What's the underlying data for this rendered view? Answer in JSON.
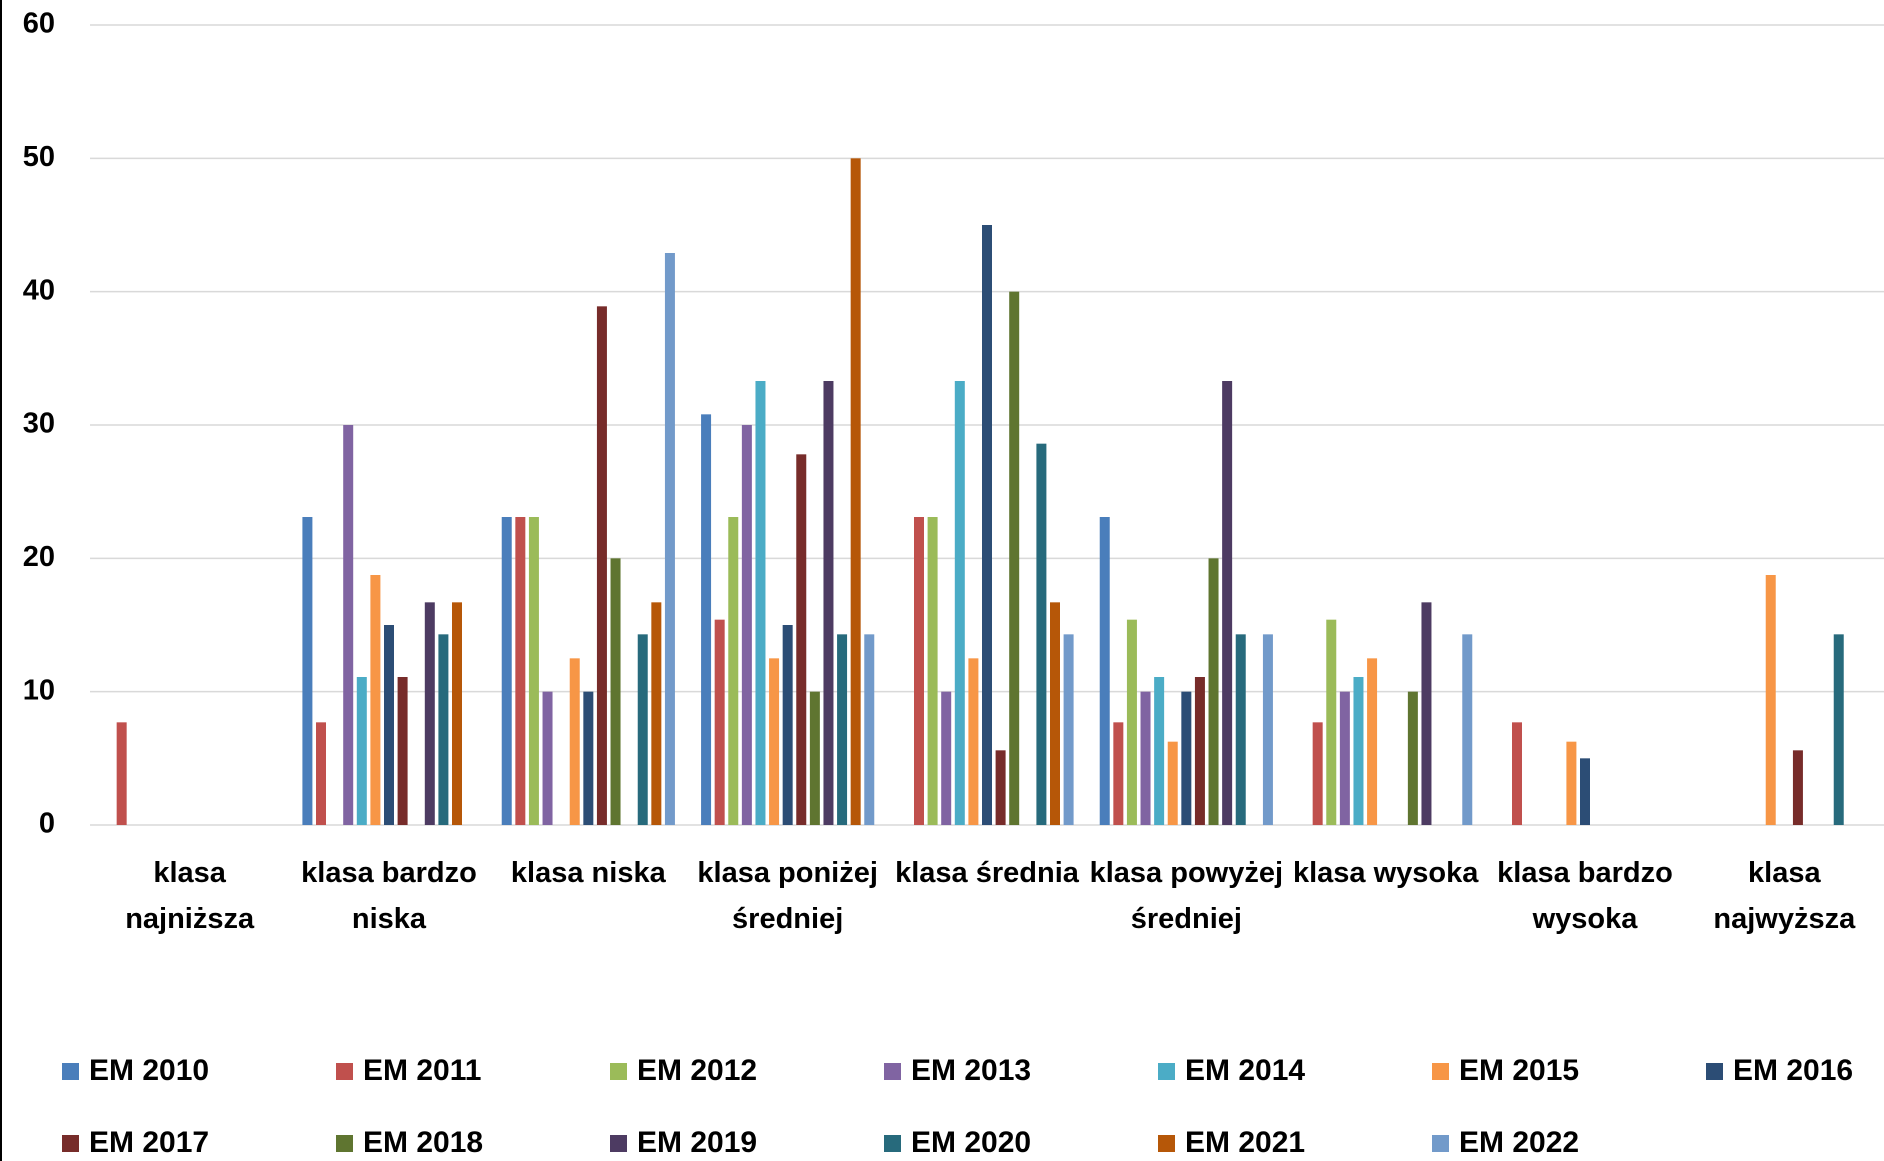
{
  "chart_data": {
    "type": "bar",
    "categories": [
      "klasa najniższa",
      "klasa bardzo niska",
      "klasa niska",
      "klasa poniżej średniej",
      "klasa średnia",
      "klasa powyżej średniej",
      "klasa wysoka",
      "klasa bardzo wysoka",
      "klasa najwyższa"
    ],
    "series": [
      {
        "name": "EM 2010",
        "color": "#4a7ebb",
        "values": [
          null,
          23.1,
          23.1,
          30.8,
          null,
          23.1,
          null,
          null,
          null
        ]
      },
      {
        "name": "EM 2011",
        "color": "#c0504d",
        "values": [
          7.7,
          7.7,
          23.1,
          15.4,
          23.1,
          7.7,
          7.7,
          7.7,
          null
        ]
      },
      {
        "name": "EM 2012",
        "color": "#9bbb59",
        "values": [
          null,
          null,
          23.1,
          23.1,
          23.1,
          15.4,
          15.4,
          null,
          null
        ]
      },
      {
        "name": "EM 2013",
        "color": "#8064a2",
        "values": [
          null,
          30,
          10,
          30,
          10,
          10,
          10,
          null,
          null
        ]
      },
      {
        "name": "EM 2014",
        "color": "#4bacc6",
        "values": [
          null,
          11.1,
          null,
          33.3,
          33.3,
          11.1,
          11.1,
          null,
          null
        ]
      },
      {
        "name": "EM 2015",
        "color": "#f79646",
        "values": [
          null,
          18.75,
          12.5,
          12.5,
          12.5,
          6.25,
          12.5,
          6.25,
          18.75
        ]
      },
      {
        "name": "EM 2016",
        "color": "#2c4d75",
        "values": [
          null,
          15,
          10,
          15,
          45,
          10,
          null,
          5,
          null
        ]
      },
      {
        "name": "EM 2017",
        "color": "#772c2a",
        "values": [
          null,
          11.1,
          38.9,
          27.8,
          5.6,
          11.1,
          null,
          null,
          5.6
        ]
      },
      {
        "name": "EM 2018",
        "color": "#5f7530",
        "values": [
          null,
          null,
          20,
          10,
          40,
          20,
          10,
          null,
          null
        ]
      },
      {
        "name": "EM 2019",
        "color": "#4d3b62",
        "values": [
          null,
          16.7,
          null,
          33.3,
          null,
          33.3,
          16.7,
          null,
          null
        ]
      },
      {
        "name": "EM 2020",
        "color": "#276a7c",
        "values": [
          null,
          14.3,
          14.3,
          14.3,
          28.6,
          14.3,
          null,
          null,
          14.3
        ]
      },
      {
        "name": "EM 2021",
        "color": "#b65708",
        "values": [
          null,
          16.7,
          16.7,
          50,
          16.7,
          null,
          null,
          null,
          null
        ]
      },
      {
        "name": "EM 2022",
        "color": "#729aca",
        "values": [
          null,
          null,
          42.9,
          14.3,
          14.3,
          14.3,
          14.3,
          null,
          null
        ]
      }
    ],
    "ylim": [
      0,
      60
    ],
    "yticks": [
      0,
      10,
      20,
      30,
      40,
      50,
      60
    ],
    "grid": true
  }
}
